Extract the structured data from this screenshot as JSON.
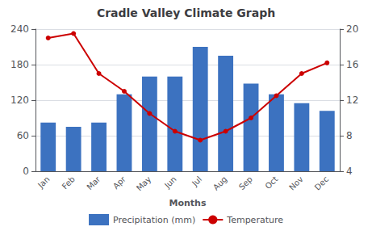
{
  "chart_data": {
    "type": "bar",
    "title": "Cradle Valley Climate Graph",
    "xlabel": "Months",
    "categories": [
      "Jan",
      "Feb",
      "Mar",
      "Apr",
      "May",
      "Jun",
      "Jul",
      "Aug",
      "Sep",
      "Oct",
      "Nov",
      "Dec"
    ],
    "series": [
      {
        "name": "Precipitation (mm)",
        "type": "bar",
        "color": "#3C72C0",
        "values": [
          82,
          75,
          82,
          130,
          160,
          160,
          210,
          195,
          148,
          130,
          115,
          102
        ]
      },
      {
        "name": "Temperature",
        "type": "line",
        "axis": "y2",
        "color": "#CC0000",
        "marker": "circle",
        "values": [
          19,
          19.5,
          15,
          13,
          10.5,
          8.5,
          7.5,
          8.5,
          10,
          12.5,
          15,
          16.2
        ]
      }
    ],
    "ylim": [
      0,
      240
    ],
    "yticks": [
      0,
      60,
      120,
      180,
      240
    ],
    "y2lim": [
      4,
      20
    ],
    "y2ticks": [
      4,
      8,
      12,
      16,
      20
    ],
    "grid": true,
    "legend": "bottom"
  }
}
